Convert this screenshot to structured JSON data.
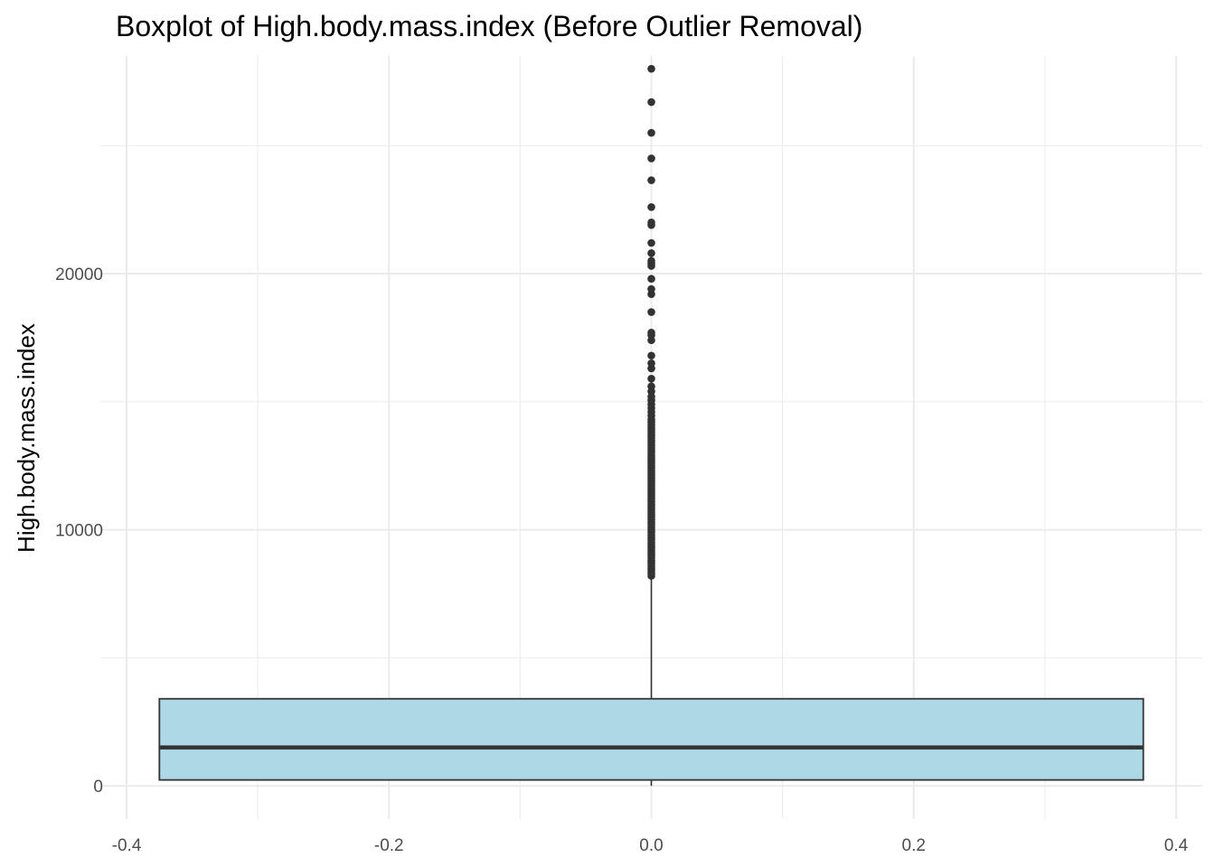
{
  "chart_data": {
    "type": "boxplot",
    "title": "Boxplot of High.body.mass.index (Before Outlier Removal)",
    "xlabel": "",
    "ylabel": "High.body.mass.index",
    "xlim": [
      -0.42,
      0.42
    ],
    "ylim": [
      -1300,
      28500
    ],
    "x_ticks": [
      -0.4,
      -0.2,
      0.0,
      0.2,
      0.4
    ],
    "x_tick_labels": [
      "-0.4",
      "-0.2",
      "0.0",
      "0.2",
      "0.4"
    ],
    "x_minor_ticks": [
      -0.3,
      -0.1,
      0.1,
      0.3
    ],
    "y_ticks": [
      0,
      10000,
      20000
    ],
    "y_tick_labels": [
      "0",
      "10000",
      "20000"
    ],
    "y_minor_ticks": [
      5000,
      15000,
      25000
    ],
    "grid": true,
    "colors": {
      "box_fill": "#add8e6",
      "box_stroke": "#333333",
      "grid": "#ebebeb",
      "outlier": "#333333"
    },
    "box": {
      "x_center": 0.0,
      "x_left": -0.375,
      "x_right": 0.375,
      "q1": 230,
      "median": 1500,
      "q3": 3400,
      "whisker_low": 0,
      "whisker_high": 3400
    },
    "outliers": [
      8200,
      8300,
      8400,
      8500,
      8600,
      8700,
      8800,
      8900,
      9000,
      9100,
      9200,
      9300,
      9400,
      9500,
      9600,
      9700,
      9800,
      9900,
      10000,
      10100,
      10200,
      10300,
      10400,
      10500,
      10600,
      10700,
      10800,
      10900,
      11000,
      11100,
      11200,
      11300,
      11400,
      11500,
      11600,
      11700,
      11800,
      11900,
      12000,
      12100,
      12200,
      12300,
      12400,
      12500,
      12600,
      12700,
      12800,
      12900,
      13000,
      13100,
      13200,
      13300,
      13400,
      13500,
      13600,
      13700,
      13800,
      13900,
      14000,
      14100,
      14200,
      14300,
      14450,
      14600,
      14750,
      14900,
      15050,
      15200,
      15400,
      15600,
      15900,
      16300,
      16500,
      16800,
      17400,
      17600,
      17700,
      18500,
      19200,
      19400,
      19800,
      20300,
      20400,
      20500,
      20800,
      21200,
      21900,
      22000,
      22600,
      23650,
      24500,
      25500,
      26700,
      28000
    ]
  }
}
